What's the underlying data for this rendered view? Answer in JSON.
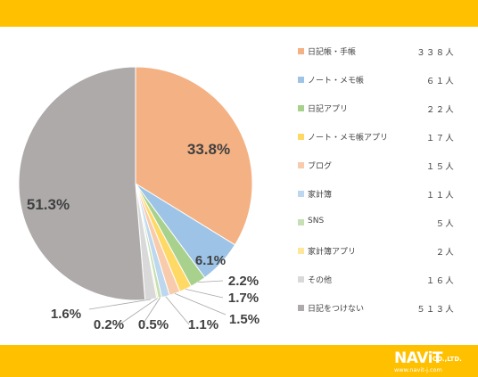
{
  "chart_data": {
    "type": "pie",
    "slices": [
      {
        "label": "日記帳・手帳",
        "count": "３３８人",
        "value": 33.8,
        "pct_label": "33.8%",
        "color": "#f4b183"
      },
      {
        "label": "ノート・メモ帳",
        "count": "６１人",
        "value": 6.1,
        "pct_label": "6.1%",
        "color": "#9dc3e6"
      },
      {
        "label": "日記アプリ",
        "count": "２２人",
        "value": 2.2,
        "pct_label": "2.2%",
        "color": "#a9d18e"
      },
      {
        "label": "ノート・メモ帳アプリ",
        "count": "１７人",
        "value": 1.7,
        "pct_label": "1.7%",
        "color": "#ffd966"
      },
      {
        "label": "ブログ",
        "count": "１５人",
        "value": 1.5,
        "pct_label": "1.5%",
        "color": "#f8cbad"
      },
      {
        "label": "家計簿",
        "count": "１１人",
        "value": 1.1,
        "pct_label": "1.1%",
        "color": "#bdd7ee"
      },
      {
        "label": "SNS",
        "count": "５人",
        "value": 0.5,
        "pct_label": "0.5%",
        "color": "#c5e0b4"
      },
      {
        "label": "家計簿アプリ",
        "count": "２人",
        "value": 0.2,
        "pct_label": "0.2%",
        "color": "#ffe699"
      },
      {
        "label": "その他",
        "count": "１６人",
        "value": 1.6,
        "pct_label": "1.6%",
        "color": "#d9d9d9"
      },
      {
        "label": "日記をつけない",
        "count": "５１３人",
        "value": 51.3,
        "pct_label": "51.3%",
        "color": "#aeaaaa"
      }
    ],
    "legend_position": "right"
  },
  "logo": {
    "brand": "NAViT",
    "suffix": "CO.,LTD.",
    "url": "www.navit-j.com"
  }
}
